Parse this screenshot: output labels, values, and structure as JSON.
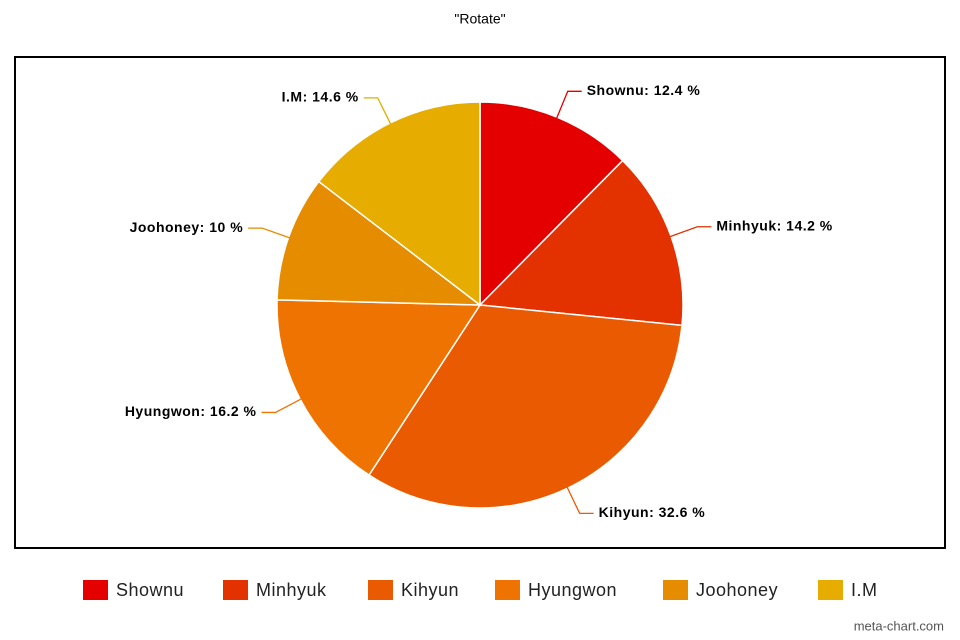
{
  "chart_data": {
    "type": "pie",
    "title": "\"Rotate\"",
    "categories": [
      "Shownu",
      "Minhyuk",
      "Kihyun",
      "Hyungwon",
      "Joohoney",
      "I.M"
    ],
    "values": [
      12.4,
      14.2,
      32.6,
      16.2,
      10,
      14.6
    ],
    "value_labels": [
      "Shownu: 12.4 %",
      "Minhyuk: 14.2 %",
      "Kihyun: 32.6 %",
      "Hyungwon: 16.2 %",
      "Joohoney: 10 %",
      "I.M: 14.6 %"
    ],
    "colors": [
      "#e50000",
      "#e33200",
      "#ea5a00",
      "#ef7300",
      "#e68c00",
      "#e6ac00"
    ],
    "legend": "bottom",
    "watermark": "meta-chart.com"
  }
}
